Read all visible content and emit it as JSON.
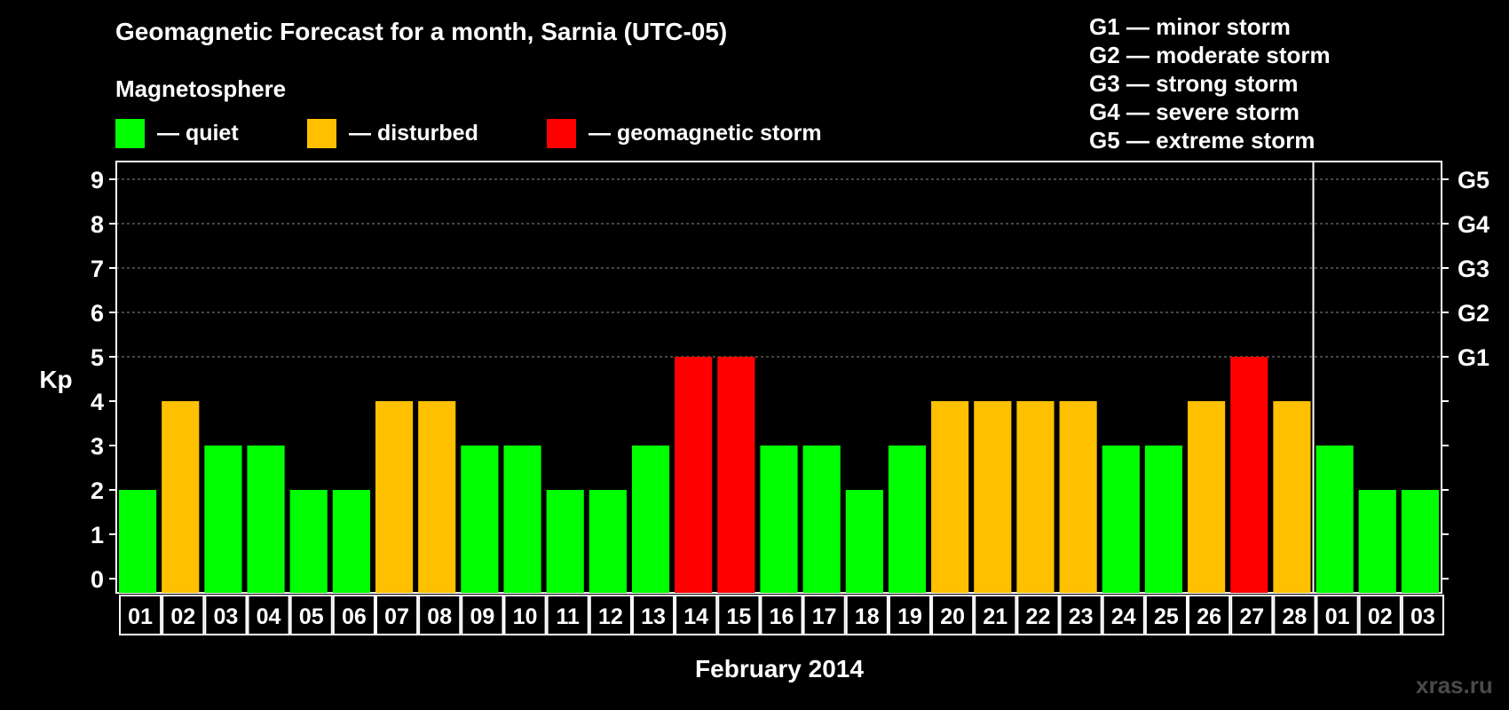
{
  "title": "Geomagnetic Forecast for a month, Sarnia (UTC-05)",
  "legend": {
    "title": "Magnetosphere",
    "items": [
      {
        "label": "— quiet",
        "color": "#00ff00"
      },
      {
        "label": "— disturbed",
        "color": "#ffc000"
      },
      {
        "label": "— geomagnetic storm",
        "color": "#ff0000"
      }
    ]
  },
  "storm_scale": [
    "G1 — minor storm",
    "G2 — moderate storm",
    "G3 — strong storm",
    "G4 — severe storm",
    "G5 — extreme storm"
  ],
  "watermark": "xras.ru",
  "chart_data": {
    "type": "bar",
    "title": "Geomagnetic Forecast for a month, Sarnia (UTC-05)",
    "xlabel": "February 2014",
    "ylabel": "Kp",
    "ylim": [
      0,
      9
    ],
    "y_ticks": [
      "0",
      "1",
      "2",
      "3",
      "4",
      "5",
      "6",
      "7",
      "8",
      "9"
    ],
    "right_axis_labels": [
      {
        "kp": 5,
        "label": "G1"
      },
      {
        "kp": 6,
        "label": "G2"
      },
      {
        "kp": 7,
        "label": "G3"
      },
      {
        "kp": 8,
        "label": "G4"
      },
      {
        "kp": 9,
        "label": "G5"
      }
    ],
    "month_boundary_after_index": 27,
    "categories": [
      "01",
      "02",
      "03",
      "04",
      "05",
      "06",
      "07",
      "08",
      "09",
      "10",
      "11",
      "12",
      "13",
      "14",
      "15",
      "16",
      "17",
      "18",
      "19",
      "20",
      "21",
      "22",
      "23",
      "24",
      "25",
      "26",
      "27",
      "28",
      "01",
      "02",
      "03"
    ],
    "values": [
      2,
      4,
      3,
      3,
      2,
      2,
      4,
      4,
      3,
      3,
      2,
      2,
      3,
      5,
      5,
      3,
      3,
      2,
      3,
      4,
      4,
      4,
      4,
      3,
      3,
      4,
      5,
      4,
      3,
      2,
      2
    ],
    "colors": {
      "quiet": "#00ff00",
      "disturbed": "#ffc000",
      "storm": "#ff0000"
    },
    "thresholds": {
      "disturbed": 4,
      "storm": 5
    }
  }
}
